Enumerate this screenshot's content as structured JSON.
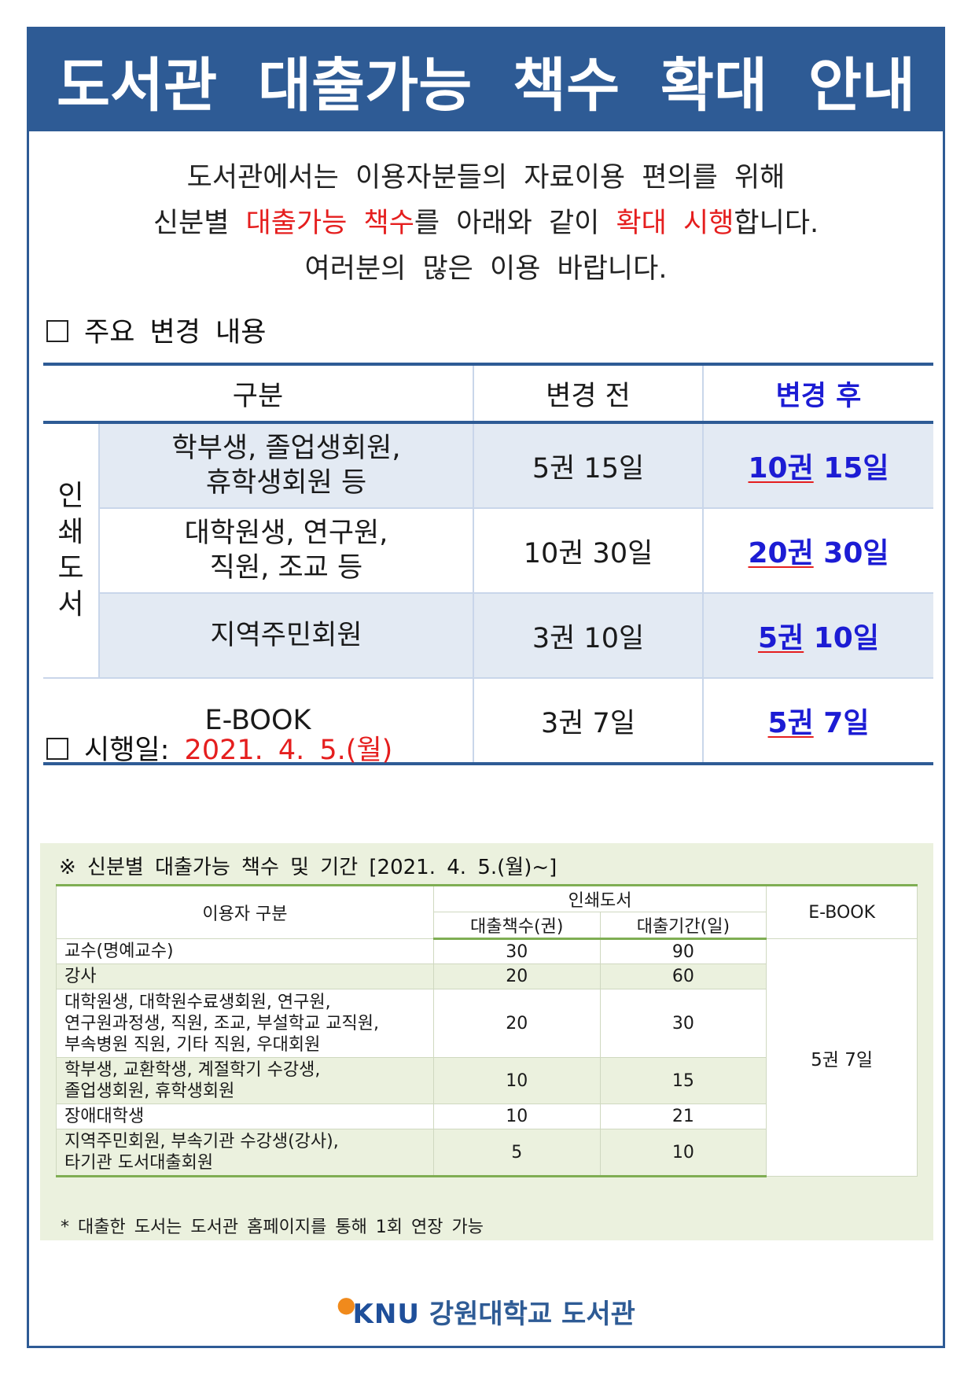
{
  "title": "도서관 대출가능 책수 확대 안내",
  "intro": {
    "line1": "도서관에서는 이용자분들의 자료이용 편의를 위해",
    "line2_a": "신분별 ",
    "line2_hl1": "대출가능 책수",
    "line2_b": "를 아래와 같이 ",
    "line2_hl2": "확대 시행",
    "line2_c": "합니다.",
    "line3": "여러분의 많은 이용 바랍니다."
  },
  "section_changes": {
    "title": "주요 변경 내용"
  },
  "main_table": {
    "headers": {
      "category": "구분",
      "before": "변경 전",
      "after": "변경 후"
    },
    "side_label": "인쇄도서",
    "rows": [
      {
        "cat1": "학부생, 졸업생회원,",
        "cat2": "휴학생회원 등",
        "before": "5권 15일",
        "after_books": "10권",
        "after_days": "15일"
      },
      {
        "cat1": "대학원생, 연구원,",
        "cat2": "직원, 조교 등",
        "before": "10권 30일",
        "after_books": "20권",
        "after_days": "30일"
      },
      {
        "cat1": "지역주민회원",
        "cat2": "",
        "before": "3권 10일",
        "after_books": "5권",
        "after_days": "10일"
      },
      {
        "cat1": "E-BOOK",
        "cat2": "",
        "before": "3권 7일",
        "after_books": "5권",
        "after_days": "7일"
      }
    ]
  },
  "section_date": {
    "label": "시행일:",
    "date": "2021. 4. 5.(월)"
  },
  "detail": {
    "title": "※ 신분별 대출가능 책수 및 기간 [2021. 4. 5.(월)~]",
    "headers": {
      "user": "이용자 구분",
      "print": "인쇄도서",
      "books": "대출책수(권)",
      "period": "대출기간(일)",
      "ebook": "E-BOOK"
    },
    "ebook_value": "5권 7일",
    "rows": [
      {
        "l1": "교수(명예교수)",
        "l2": "",
        "l3": "",
        "books": "30",
        "days": "90"
      },
      {
        "l1": "강사",
        "l2": "",
        "l3": "",
        "books": "20",
        "days": "60"
      },
      {
        "l1": "대학원생, 대학원수료생회원, 연구원,",
        "l2": "연구원과정생, 직원, 조교, 부설학교 교직원,",
        "l3": "부속병원 직원, 기타 직원, 우대회원",
        "books": "20",
        "days": "30"
      },
      {
        "l1": "학부생, 교환학생, 계절학기 수강생,",
        "l2": "졸업생회원, 휴학생회원",
        "l3": "",
        "books": "10",
        "days": "15"
      },
      {
        "l1": "장애대학생",
        "l2": "",
        "l3": "",
        "books": "10",
        "days": "21"
      },
      {
        "l1": "지역주민회원, 부속기관 수강생(강사),",
        "l2": "타기관 도서대출회원",
        "l3": "",
        "books": "5",
        "days": "10"
      }
    ],
    "note": "* 대출한 도서는 도서관 홈페이지를 통해 1회 연장 가능"
  },
  "logo": {
    "mark": "KNU",
    "text": "강원대학교 도서관"
  }
}
